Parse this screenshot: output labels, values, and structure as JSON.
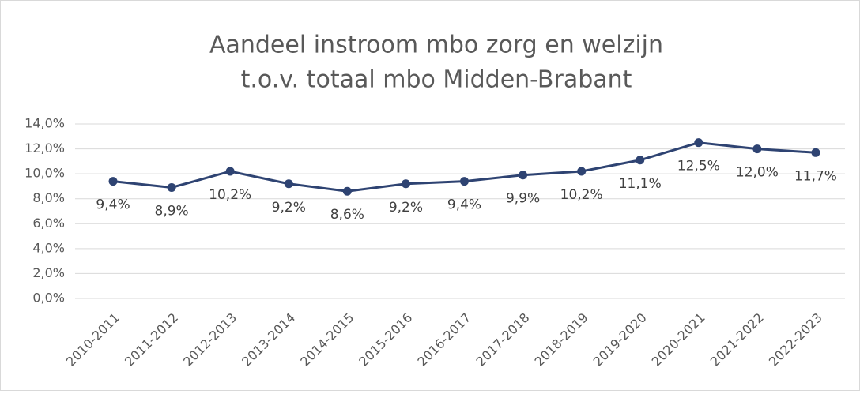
{
  "chart_data": {
    "type": "line",
    "title": [
      "Aandeel instroom mbo zorg en welzijn",
      "t.o.v. totaal mbo Midden-Brabant"
    ],
    "categories": [
      "2010-2011",
      "2011-2012",
      "2012-2013",
      "2013-2014",
      "2014-2015",
      "2015-2016",
      "2016-2017",
      "2017-2018",
      "2018-2019",
      "2019-2020",
      "2020-2021",
      "2021-2022",
      "2022-2023"
    ],
    "series": [
      {
        "color": "#2e4372",
        "values": [
          9.4,
          8.9,
          10.2,
          9.2,
          8.6,
          9.2,
          9.4,
          9.9,
          10.2,
          11.1,
          12.5,
          12.0,
          11.7
        ],
        "value_labels": [
          "9,4%",
          "8,9%",
          "10,2%",
          "9,2%",
          "8,6%",
          "9,2%",
          "9,4%",
          "9,9%",
          "10,2%",
          "11,1%",
          "12,5%",
          "12,0%",
          "11,7%"
        ]
      }
    ],
    "ylim": [
      0,
      14
    ],
    "yticks": [
      {
        "value": 0,
        "label": "0,0%"
      },
      {
        "value": 2,
        "label": "2,0%"
      },
      {
        "value": 4,
        "label": "4,0%"
      },
      {
        "value": 6,
        "label": "6,0%"
      },
      {
        "value": 8,
        "label": "8,0%"
      },
      {
        "value": 10,
        "label": "10,0%"
      },
      {
        "value": 12,
        "label": "12,0%"
      },
      {
        "value": 14,
        "label": "14,0%"
      }
    ],
    "grid": true
  }
}
